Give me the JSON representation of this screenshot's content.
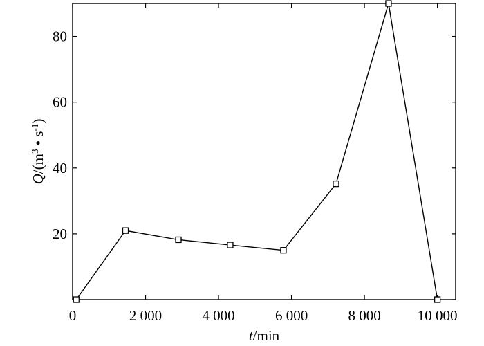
{
  "chart_data": {
    "type": "line",
    "title": "",
    "xlabel": {
      "var": "t",
      "unit": "/min"
    },
    "ylabel": {
      "var": "Q",
      "unit_prefix": "/(m",
      "sup1": "3",
      "mid": " • s",
      "sup2": "-1",
      "unit_suffix": ")"
    },
    "xlim": [
      0,
      10500
    ],
    "ylim": [
      0,
      90
    ],
    "x_ticks": [
      0,
      2000,
      4000,
      6000,
      8000,
      10000
    ],
    "x_tick_labels": [
      "0",
      "2 000",
      "4 000",
      "6 000",
      "8 000",
      "10 000"
    ],
    "y_ticks": [
      0,
      20,
      40,
      60,
      80
    ],
    "y_tick_labels": [
      "",
      "20",
      "40",
      "60",
      "80"
    ],
    "grid": false,
    "marker": "open-square",
    "series": [
      {
        "x": [
          100,
          1450,
          2900,
          4320,
          5780,
          7220,
          8660,
          10000
        ],
        "y": [
          0,
          21,
          18.2,
          16.6,
          15,
          35.2,
          90,
          0
        ]
      }
    ]
  }
}
